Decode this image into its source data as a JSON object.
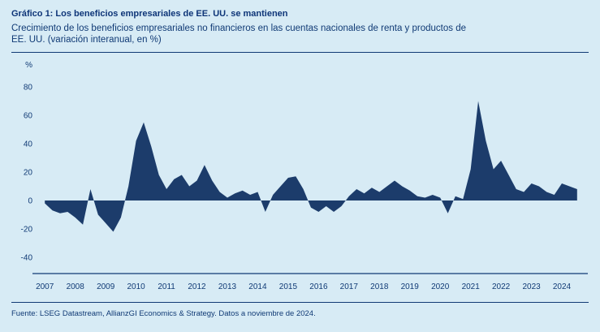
{
  "header": {
    "title": "Gráfico 1: Los beneficios empresariales de EE. UU. se mantienen",
    "subtitle_line1": "Crecimiento de los beneficios empresariales no financieros en las cuentas nacionales de renta y productos de",
    "subtitle_line2": "EE. UU. (variación interanual, en %)"
  },
  "footer": {
    "source": "Fuente: LSEG Datastream, AllianzGI Economics & Strategy. Datos a noviembre de 2024."
  },
  "colors": {
    "background": "#d7ebf5",
    "text": "#103a75",
    "area_fill": "#1c3c6b",
    "axis_line": "#103a75"
  },
  "chart_data": {
    "type": "area",
    "title": "Crecimiento de los beneficios empresariales no financieros de EE. UU. (variación interanual, en %)",
    "ylabel": "%",
    "xlabel": "",
    "ylim": [
      -40,
      80
    ],
    "yticks": [
      80,
      60,
      40,
      20,
      0,
      -20,
      -40
    ],
    "xticks": [
      2007,
      2008,
      2009,
      2010,
      2011,
      2012,
      2013,
      2014,
      2015,
      2016,
      2017,
      2018,
      2019,
      2020,
      2021,
      2022,
      2023,
      2024
    ],
    "grid": false,
    "legend": false,
    "series_name": "Beneficios empresariales no financieros (variación interanual, %)",
    "x": [
      2007.0,
      2007.25,
      2007.5,
      2007.75,
      2008.0,
      2008.25,
      2008.5,
      2008.75,
      2009.0,
      2009.25,
      2009.5,
      2009.75,
      2010.0,
      2010.25,
      2010.5,
      2010.75,
      2011.0,
      2011.25,
      2011.5,
      2011.75,
      2012.0,
      2012.25,
      2012.5,
      2012.75,
      2013.0,
      2013.25,
      2013.5,
      2013.75,
      2014.0,
      2014.25,
      2014.5,
      2014.75,
      2015.0,
      2015.25,
      2015.5,
      2015.75,
      2016.0,
      2016.25,
      2016.5,
      2016.75,
      2017.0,
      2017.25,
      2017.5,
      2017.75,
      2018.0,
      2018.25,
      2018.5,
      2018.75,
      2019.0,
      2019.25,
      2019.5,
      2019.75,
      2020.0,
      2020.25,
      2020.5,
      2020.75,
      2021.0,
      2021.25,
      2021.5,
      2021.75,
      2022.0,
      2022.25,
      2022.5,
      2022.75,
      2023.0,
      2023.25,
      2023.5,
      2023.75,
      2024.0,
      2024.25,
      2024.5
    ],
    "values": [
      -2,
      -7,
      -9,
      -8,
      -12,
      -17,
      8,
      -10,
      -16,
      -22,
      -12,
      10,
      42,
      55,
      38,
      18,
      8,
      15,
      18,
      10,
      14,
      25,
      14,
      6,
      2,
      5,
      7,
      4,
      6,
      -8,
      4,
      10,
      16,
      17,
      8,
      -5,
      -8,
      -4,
      -8,
      -4,
      3,
      8,
      5,
      9,
      6,
      10,
      14,
      10,
      7,
      3,
      2,
      4,
      2,
      -9,
      3,
      1,
      22,
      70,
      42,
      22,
      28,
      18,
      8,
      6,
      12,
      10,
      6,
      4,
      12,
      10,
      8
    ]
  }
}
